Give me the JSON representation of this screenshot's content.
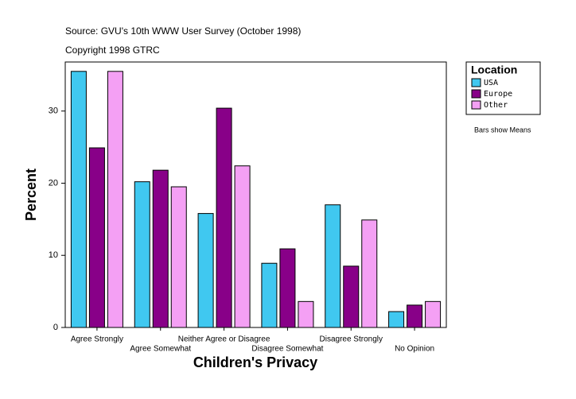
{
  "chart_data": {
    "type": "bar",
    "title": "Source: GVU's 10th WWW User Survey (October 1998)",
    "subtitle": "Copyright 1998 GTRC",
    "x_label": "Children's Privacy",
    "y_label": "Percent",
    "note": "Bars show Means",
    "legend_title": "Location",
    "categories": [
      "Agree Strongly",
      "Agree Somewhat",
      "Neither Agree or Disagree",
      "Disagree Somewhat",
      "Disagree Strongly",
      "No Opinion"
    ],
    "series": [
      {
        "name": "USA",
        "color": "#40c8f0",
        "values": [
          35.5,
          20.2,
          15.8,
          8.9,
          17.0,
          2.2
        ]
      },
      {
        "name": "Europe",
        "color": "#880088",
        "values": [
          24.9,
          21.8,
          30.4,
          10.9,
          8.5,
          3.1
        ]
      },
      {
        "name": "Other",
        "color": "#f4a0f4",
        "values": [
          35.5,
          19.5,
          22.4,
          3.6,
          14.9,
          3.6
        ]
      }
    ],
    "ylim": [
      0,
      36.8
    ],
    "yticks": [
      0,
      10,
      20,
      30
    ]
  }
}
